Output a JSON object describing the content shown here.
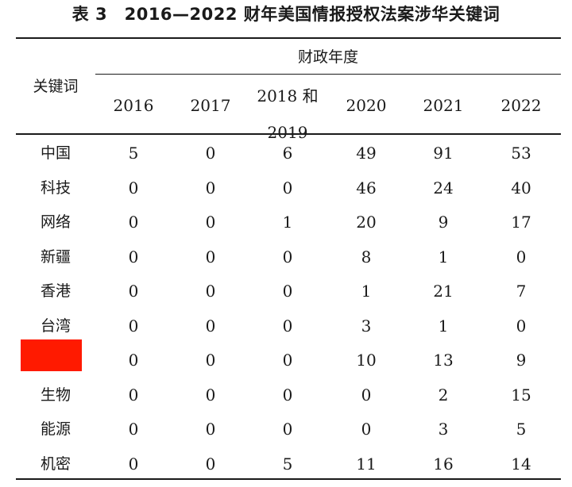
{
  "title": "表 3　2016—2022 财年美国情报授权法案涉华关键词",
  "header": {
    "keyword_label": "关键词",
    "group_label": "财政年度",
    "years": [
      "2016",
      "2017",
      "2018 和\n2019",
      "2020",
      "2021",
      "2022"
    ]
  },
  "rows": [
    {
      "keyword": "中国",
      "values": [
        "5",
        "0",
        "6",
        "49",
        "91",
        "53"
      ]
    },
    {
      "keyword": "科技",
      "values": [
        "0",
        "0",
        "0",
        "46",
        "24",
        "40"
      ]
    },
    {
      "keyword": "网络",
      "values": [
        "0",
        "0",
        "1",
        "20",
        "9",
        "17"
      ]
    },
    {
      "keyword": "新疆",
      "values": [
        "0",
        "0",
        "0",
        "8",
        "1",
        "0"
      ]
    },
    {
      "keyword": "香港",
      "values": [
        "0",
        "0",
        "0",
        "1",
        "21",
        "7"
      ]
    },
    {
      "keyword": "台湾",
      "values": [
        "0",
        "0",
        "0",
        "3",
        "1",
        "0"
      ]
    },
    {
      "keyword": "",
      "values": [
        "0",
        "0",
        "0",
        "10",
        "13",
        "9"
      ]
    },
    {
      "keyword": "生物",
      "values": [
        "0",
        "0",
        "0",
        "0",
        "2",
        "15"
      ]
    },
    {
      "keyword": "能源",
      "values": [
        "0",
        "0",
        "0",
        "0",
        "3",
        "5"
      ]
    },
    {
      "keyword": "机密",
      "values": [
        "0",
        "0",
        "5",
        "11",
        "16",
        "14"
      ]
    }
  ]
}
